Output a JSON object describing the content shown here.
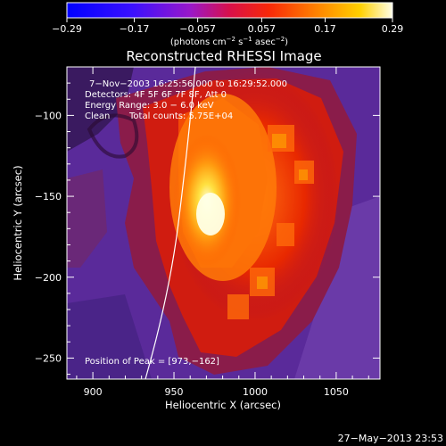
{
  "chart_data": {
    "type": "heatmap",
    "title": "Reconstructed RHESSI Image",
    "xlabel": "Heliocentric X (arcsec)",
    "ylabel": "Heliocentric Y (arcsec)",
    "xlim": [
      884,
      1077
    ],
    "ylim": [
      -263,
      -70
    ],
    "x_ticks": [
      900,
      950,
      1000,
      1050
    ],
    "y_ticks": [
      -250,
      -200,
      -150,
      -100
    ],
    "x_tick_labels": [
      "900",
      "950",
      "1000",
      "1050"
    ],
    "y_tick_labels": [
      "−250",
      "−200",
      "−150",
      "−100"
    ],
    "colorbar": {
      "range": [
        -0.29,
        0.29
      ],
      "ticks": [
        -0.29,
        -0.17,
        -0.057,
        0.057,
        0.17,
        0.29
      ],
      "tick_labels": [
        "−0.29",
        "−0.17",
        "−0.057",
        "0.057",
        "0.17",
        "0.29"
      ],
      "units_prefix": "(photons cm",
      "units_exp1": "−2",
      "units_mid1": " s",
      "units_exp2": "−1",
      "units_mid2": " asec",
      "units_exp3": "−2",
      "units_suffix": ")"
    },
    "annotations": {
      "time_range": "7−Nov−2003 16:25:56.000 to 16:29:52.000",
      "detectors": "Detectors: 4F 5F 6F 7F 8F, Att 0",
      "energy": "Energy Range: 3.0 − 6.0 keV",
      "clean": "Clean",
      "total_counts": "Total counts: 5.75E+04",
      "peak": "Position of Peak = [973,−162]"
    },
    "peak": [
      973,
      -162
    ],
    "grid": false,
    "colormap": "black-blue-purple-red-orange-yellow-white"
  },
  "footer": {
    "date_stamp": "27−May−2013 23:53"
  }
}
